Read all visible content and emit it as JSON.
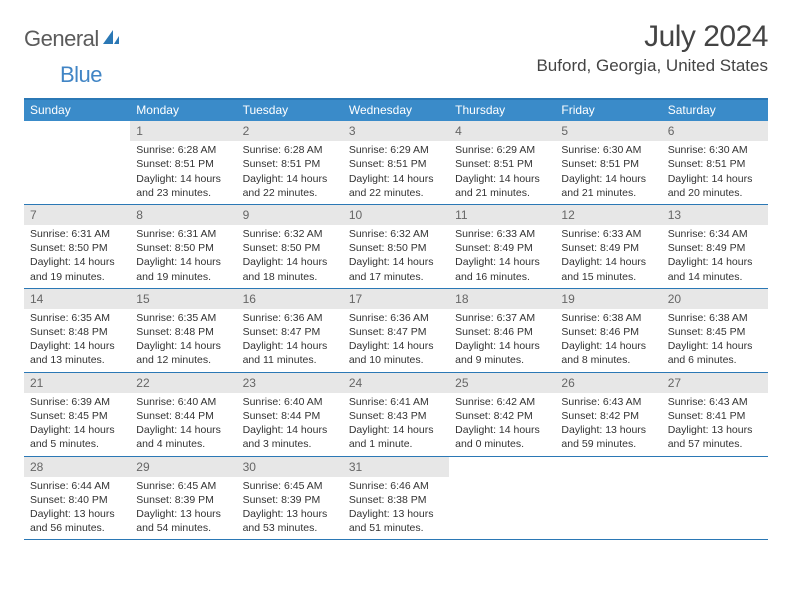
{
  "logo": {
    "text1": "General",
    "text2": "Blue"
  },
  "title": "July 2024",
  "location": "Buford, Georgia, United States",
  "colors": {
    "header_bg": "#3a8bc9",
    "border": "#2b78b5",
    "daynum_bg": "#e7e7e7",
    "text": "#333333",
    "logo_gray": "#5b5b5b",
    "logo_blue": "#4185c5"
  },
  "day_headers": [
    "Sunday",
    "Monday",
    "Tuesday",
    "Wednesday",
    "Thursday",
    "Friday",
    "Saturday"
  ],
  "weeks": [
    [
      {
        "n": "",
        "sr": "",
        "ss": "",
        "dl": ""
      },
      {
        "n": "1",
        "sr": "Sunrise: 6:28 AM",
        "ss": "Sunset: 8:51 PM",
        "dl": "Daylight: 14 hours and 23 minutes."
      },
      {
        "n": "2",
        "sr": "Sunrise: 6:28 AM",
        "ss": "Sunset: 8:51 PM",
        "dl": "Daylight: 14 hours and 22 minutes."
      },
      {
        "n": "3",
        "sr": "Sunrise: 6:29 AM",
        "ss": "Sunset: 8:51 PM",
        "dl": "Daylight: 14 hours and 22 minutes."
      },
      {
        "n": "4",
        "sr": "Sunrise: 6:29 AM",
        "ss": "Sunset: 8:51 PM",
        "dl": "Daylight: 14 hours and 21 minutes."
      },
      {
        "n": "5",
        "sr": "Sunrise: 6:30 AM",
        "ss": "Sunset: 8:51 PM",
        "dl": "Daylight: 14 hours and 21 minutes."
      },
      {
        "n": "6",
        "sr": "Sunrise: 6:30 AM",
        "ss": "Sunset: 8:51 PM",
        "dl": "Daylight: 14 hours and 20 minutes."
      }
    ],
    [
      {
        "n": "7",
        "sr": "Sunrise: 6:31 AM",
        "ss": "Sunset: 8:50 PM",
        "dl": "Daylight: 14 hours and 19 minutes."
      },
      {
        "n": "8",
        "sr": "Sunrise: 6:31 AM",
        "ss": "Sunset: 8:50 PM",
        "dl": "Daylight: 14 hours and 19 minutes."
      },
      {
        "n": "9",
        "sr": "Sunrise: 6:32 AM",
        "ss": "Sunset: 8:50 PM",
        "dl": "Daylight: 14 hours and 18 minutes."
      },
      {
        "n": "10",
        "sr": "Sunrise: 6:32 AM",
        "ss": "Sunset: 8:50 PM",
        "dl": "Daylight: 14 hours and 17 minutes."
      },
      {
        "n": "11",
        "sr": "Sunrise: 6:33 AM",
        "ss": "Sunset: 8:49 PM",
        "dl": "Daylight: 14 hours and 16 minutes."
      },
      {
        "n": "12",
        "sr": "Sunrise: 6:33 AM",
        "ss": "Sunset: 8:49 PM",
        "dl": "Daylight: 14 hours and 15 minutes."
      },
      {
        "n": "13",
        "sr": "Sunrise: 6:34 AM",
        "ss": "Sunset: 8:49 PM",
        "dl": "Daylight: 14 hours and 14 minutes."
      }
    ],
    [
      {
        "n": "14",
        "sr": "Sunrise: 6:35 AM",
        "ss": "Sunset: 8:48 PM",
        "dl": "Daylight: 14 hours and 13 minutes."
      },
      {
        "n": "15",
        "sr": "Sunrise: 6:35 AM",
        "ss": "Sunset: 8:48 PM",
        "dl": "Daylight: 14 hours and 12 minutes."
      },
      {
        "n": "16",
        "sr": "Sunrise: 6:36 AM",
        "ss": "Sunset: 8:47 PM",
        "dl": "Daylight: 14 hours and 11 minutes."
      },
      {
        "n": "17",
        "sr": "Sunrise: 6:36 AM",
        "ss": "Sunset: 8:47 PM",
        "dl": "Daylight: 14 hours and 10 minutes."
      },
      {
        "n": "18",
        "sr": "Sunrise: 6:37 AM",
        "ss": "Sunset: 8:46 PM",
        "dl": "Daylight: 14 hours and 9 minutes."
      },
      {
        "n": "19",
        "sr": "Sunrise: 6:38 AM",
        "ss": "Sunset: 8:46 PM",
        "dl": "Daylight: 14 hours and 8 minutes."
      },
      {
        "n": "20",
        "sr": "Sunrise: 6:38 AM",
        "ss": "Sunset: 8:45 PM",
        "dl": "Daylight: 14 hours and 6 minutes."
      }
    ],
    [
      {
        "n": "21",
        "sr": "Sunrise: 6:39 AM",
        "ss": "Sunset: 8:45 PM",
        "dl": "Daylight: 14 hours and 5 minutes."
      },
      {
        "n": "22",
        "sr": "Sunrise: 6:40 AM",
        "ss": "Sunset: 8:44 PM",
        "dl": "Daylight: 14 hours and 4 minutes."
      },
      {
        "n": "23",
        "sr": "Sunrise: 6:40 AM",
        "ss": "Sunset: 8:44 PM",
        "dl": "Daylight: 14 hours and 3 minutes."
      },
      {
        "n": "24",
        "sr": "Sunrise: 6:41 AM",
        "ss": "Sunset: 8:43 PM",
        "dl": "Daylight: 14 hours and 1 minute."
      },
      {
        "n": "25",
        "sr": "Sunrise: 6:42 AM",
        "ss": "Sunset: 8:42 PM",
        "dl": "Daylight: 14 hours and 0 minutes."
      },
      {
        "n": "26",
        "sr": "Sunrise: 6:43 AM",
        "ss": "Sunset: 8:42 PM",
        "dl": "Daylight: 13 hours and 59 minutes."
      },
      {
        "n": "27",
        "sr": "Sunrise: 6:43 AM",
        "ss": "Sunset: 8:41 PM",
        "dl": "Daylight: 13 hours and 57 minutes."
      }
    ],
    [
      {
        "n": "28",
        "sr": "Sunrise: 6:44 AM",
        "ss": "Sunset: 8:40 PM",
        "dl": "Daylight: 13 hours and 56 minutes."
      },
      {
        "n": "29",
        "sr": "Sunrise: 6:45 AM",
        "ss": "Sunset: 8:39 PM",
        "dl": "Daylight: 13 hours and 54 minutes."
      },
      {
        "n": "30",
        "sr": "Sunrise: 6:45 AM",
        "ss": "Sunset: 8:39 PM",
        "dl": "Daylight: 13 hours and 53 minutes."
      },
      {
        "n": "31",
        "sr": "Sunrise: 6:46 AM",
        "ss": "Sunset: 8:38 PM",
        "dl": "Daylight: 13 hours and 51 minutes."
      },
      {
        "n": "",
        "sr": "",
        "ss": "",
        "dl": ""
      },
      {
        "n": "",
        "sr": "",
        "ss": "",
        "dl": ""
      },
      {
        "n": "",
        "sr": "",
        "ss": "",
        "dl": ""
      }
    ]
  ]
}
